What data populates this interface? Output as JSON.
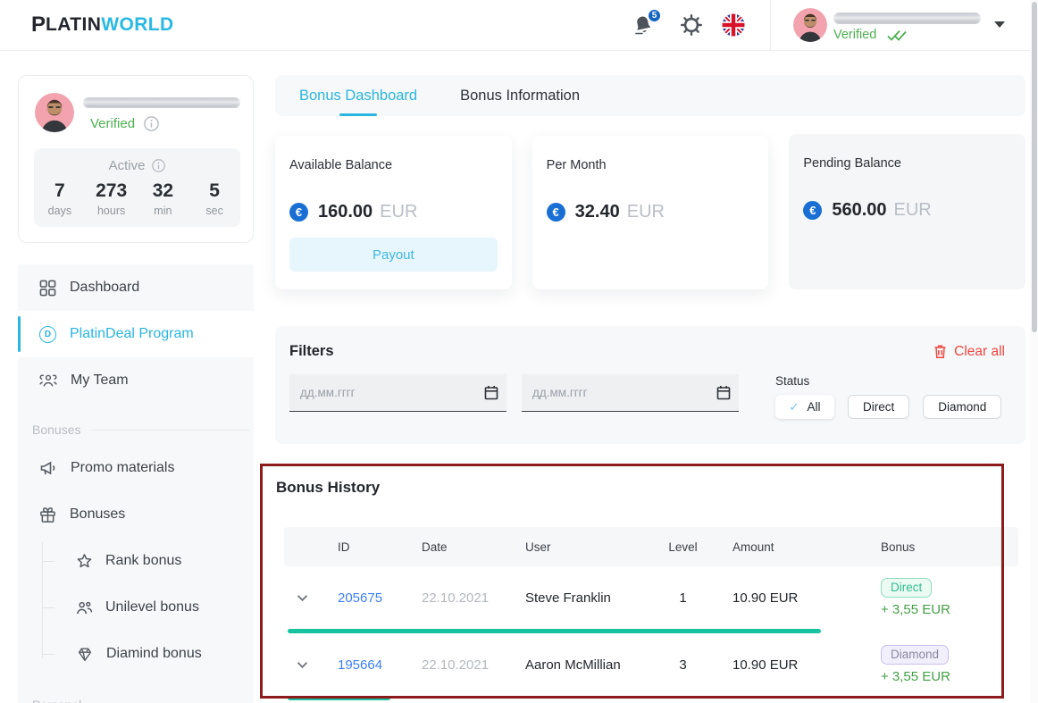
{
  "header": {
    "logo_prefix": "P",
    "logo_part1": "LATIN",
    "logo_part2": "WORLD",
    "notification_count": "5",
    "verified_label": "Verified"
  },
  "profile": {
    "verified_label": "Verified",
    "active_label": "Active",
    "timer": {
      "days": "7",
      "days_label": "days",
      "hours": "273",
      "hours_label": "hours",
      "min": "32",
      "min_label": "min",
      "sec": "5",
      "sec_label": "sec"
    }
  },
  "sidebar": {
    "items": [
      {
        "label": "Dashboard"
      },
      {
        "label": "PlatinDeal Program"
      },
      {
        "label": "My Team"
      }
    ],
    "bonuses_section_label": "Bonuses",
    "promo_label": "Promo materials",
    "bonuses_label": "Bonuses",
    "sub_items": [
      {
        "label": "Rank bonus"
      },
      {
        "label": "Unilevel bonus"
      },
      {
        "label": "Diamind bonus"
      }
    ],
    "personal_section_label": "Personal"
  },
  "tabs": [
    {
      "label": "Bonus Dashboard",
      "active": true
    },
    {
      "label": "Bonus Information",
      "active": false
    }
  ],
  "balance_cards": [
    {
      "title": "Available Balance",
      "amount": "160.00",
      "currency": "EUR",
      "button_label": "Payout"
    },
    {
      "title": "Per Month",
      "amount": "32.40",
      "currency": "EUR"
    },
    {
      "title": "Pending Balance",
      "amount": "560.00",
      "currency": "EUR"
    }
  ],
  "filters": {
    "title": "Filters",
    "clear_all_label": "Clear all",
    "date_from_placeholder": "дд.мм.гггг",
    "date_to_placeholder": "дд.мм.гггг",
    "status_label": "Status",
    "status_options": [
      {
        "label": "All",
        "selected": true
      },
      {
        "label": "Direct",
        "selected": false
      },
      {
        "label": "Diamond",
        "selected": false
      }
    ]
  },
  "bonus_history": {
    "title": "Bonus History",
    "columns": [
      "ID",
      "Date",
      "User",
      "Level",
      "Amount",
      "Bonus"
    ],
    "rows": [
      {
        "id": "205675",
        "date": "22.10.2021",
        "user": "Steve Franklin",
        "level": "1",
        "amount": "10.90 EUR",
        "bonus_type": "Direct",
        "bonus_amount": "+ 3,55 EUR",
        "progress_percent": 73
      },
      {
        "id": "195664",
        "date": "22.10.2021",
        "user": "Aaron McMillian",
        "level": "3",
        "amount": "10.90 EUR",
        "bonus_type": "Diamond",
        "bonus_amount": "+ 3,55 EUR",
        "progress_percent": 14
      }
    ]
  },
  "colors": {
    "accent_cyan": "#2ab5e0",
    "link_blue": "#3d7ff5",
    "verified_green": "#4caf50",
    "bonus_amount_green": "#43a047",
    "direct_badge_green": "#2fbd90",
    "diamond_badge_purple": "#8b87a0",
    "progress_teal": "#17c39e",
    "clear_all_red": "#ef4640",
    "annotation_border_red": "#8c1b1b",
    "notification_badge_blue": "#1565c0",
    "euro_icon_blue": "#1a6fd4"
  }
}
